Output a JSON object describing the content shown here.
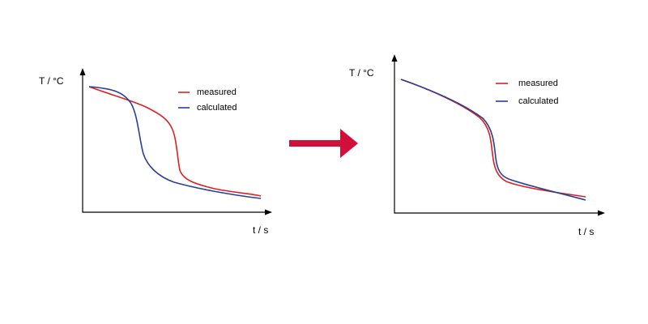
{
  "panels": [
    {
      "y_label": "T / °C",
      "x_label": "t / s",
      "legend": [
        "measured",
        "calculated"
      ]
    },
    {
      "y_label": "T / °C",
      "x_label": "t / s",
      "legend": [
        "measured",
        "calculated"
      ]
    }
  ]
}
